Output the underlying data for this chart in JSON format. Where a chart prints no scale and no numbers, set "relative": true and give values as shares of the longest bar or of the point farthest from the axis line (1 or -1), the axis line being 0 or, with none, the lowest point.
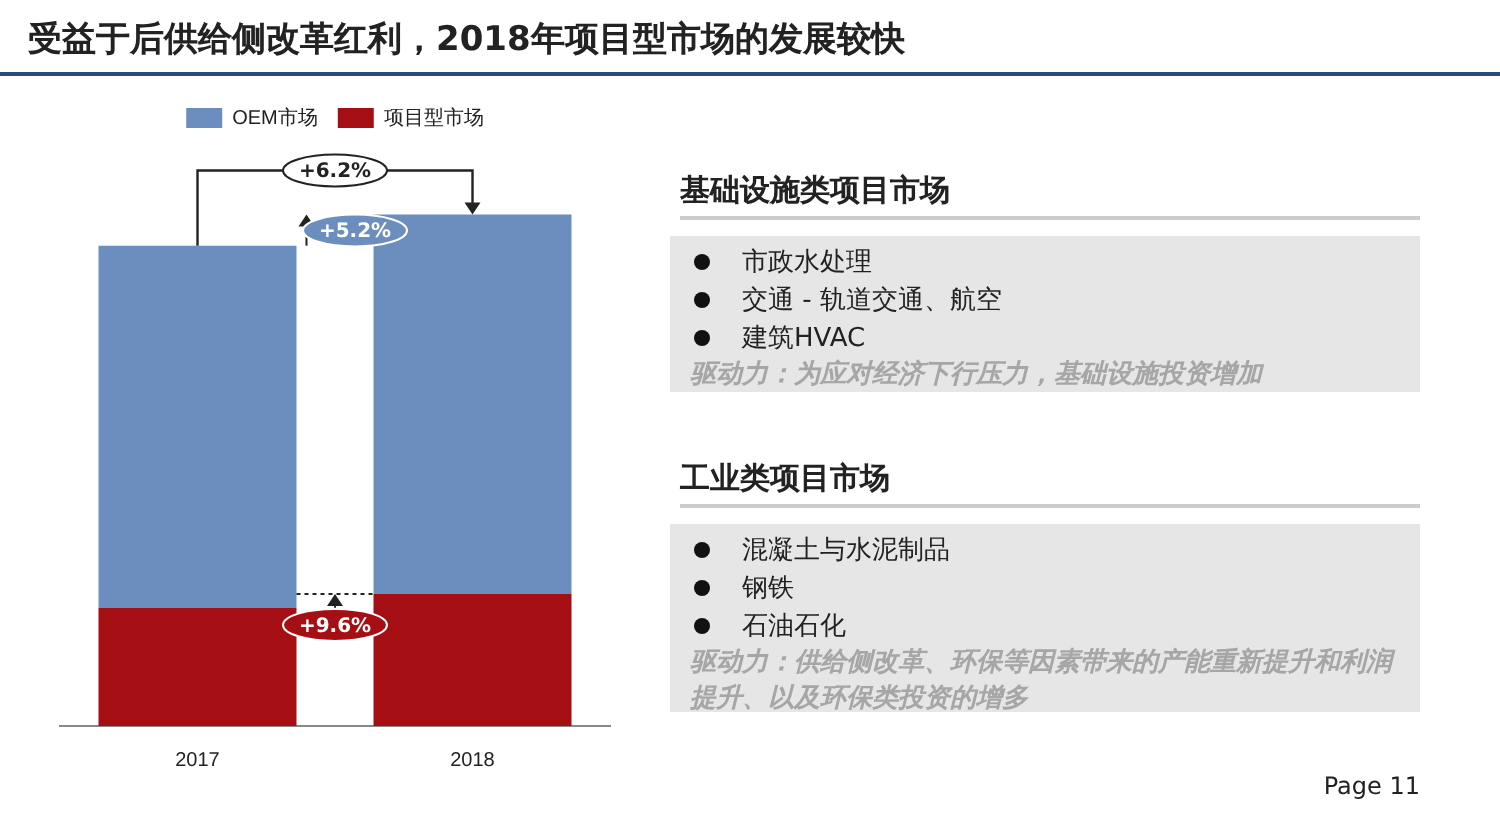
{
  "chart_data": {
    "type": "bar",
    "title": "受益于后供给侧改革红利，2018年项目型市场的发展较快",
    "categories": [
      "2017",
      "2018"
    ],
    "stacked": true,
    "relative": true,
    "legend": "top",
    "series": [
      {
        "name": "项目型市场",
        "color": "#a50f14",
        "values": [
          0.231,
          0.258
        ]
      },
      {
        "name": "OEM市场",
        "color": "#6c8ebf",
        "values": [
          0.708,
          0.742
        ]
      }
    ],
    "annotations": [
      "+6.2%",
      "+5.2%",
      "+9.6%",
      "基础设施类项目市场",
      "市政水处理",
      "交通 - 轨道交通、航空",
      "建筑HVAC",
      "驱动力：为应对经济下行压力，基础设施投资增加",
      "工业类项目市场",
      "混凝土与水泥制品",
      "钢铁",
      "石油石化",
      "驱动力：供给侧改革、环保等因素带来的产能重新提升和利润提升、以及环保类投资的增多",
      "Page 11"
    ]
  }
}
